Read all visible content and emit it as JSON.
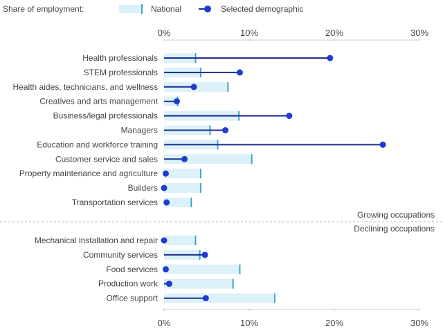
{
  "legend": {
    "title": "Share of employment:",
    "national_label": "National",
    "demographic_label": "Selected demographic"
  },
  "colors": {
    "national_bar": "#dcf1fa",
    "national_tick": "#3fa7c3",
    "demographic_line": "#1c2e8c",
    "demographic_dot": "#1f3bd1",
    "axis": "#cccccc",
    "divider": "#bbbbbb"
  },
  "chart_data": {
    "type": "dumbbell",
    "title": "Share of employment",
    "xlabel": "",
    "ylabel": "",
    "xlim": [
      0,
      30
    ],
    "xticks": [
      0,
      10,
      20,
      30
    ],
    "xtick_labels": [
      "0%",
      "10%",
      "20%",
      "30%"
    ],
    "grid": false,
    "legend_position": "top-left",
    "series": [
      {
        "name": "National",
        "style": "bar with tick"
      },
      {
        "name": "Selected demographic",
        "style": "line with dot"
      }
    ],
    "groups": [
      {
        "name": "Growing occupations",
        "rows": [
          {
            "label": "Health professionals",
            "national": 3.7,
            "demographic": 19.5
          },
          {
            "label": "STEM professionals",
            "national": 4.3,
            "demographic": 8.9
          },
          {
            "label": "Health aides, technicians, and wellness",
            "national": 7.5,
            "demographic": 3.5
          },
          {
            "label": "Creatives and arts management",
            "national": 1.6,
            "demographic": 1.5
          },
          {
            "label": "Business/legal professionals",
            "national": 8.8,
            "demographic": 14.7
          },
          {
            "label": "Managers",
            "national": 5.4,
            "demographic": 7.2
          },
          {
            "label": "Education and workforce training",
            "national": 6.3,
            "demographic": 25.7
          },
          {
            "label": "Customer service and sales",
            "national": 10.3,
            "demographic": 2.4
          },
          {
            "label": "Property maintenance and agriculture",
            "national": 4.3,
            "demographic": 0.2
          },
          {
            "label": "Builders",
            "national": 4.3,
            "demographic": 0.0
          },
          {
            "label": "Transportation services",
            "national": 3.2,
            "demographic": 0.3
          }
        ]
      },
      {
        "name": "Declining occupations",
        "rows": [
          {
            "label": "Mechanical installation and repair",
            "national": 3.7,
            "demographic": 0.0
          },
          {
            "label": "Community services",
            "national": 4.2,
            "demographic": 4.8
          },
          {
            "label": "Food services",
            "national": 8.9,
            "demographic": 0.2
          },
          {
            "label": "Production work",
            "national": 8.1,
            "demographic": 0.6
          },
          {
            "label": "Office support",
            "national": 13.0,
            "demographic": 4.9
          }
        ]
      }
    ]
  }
}
